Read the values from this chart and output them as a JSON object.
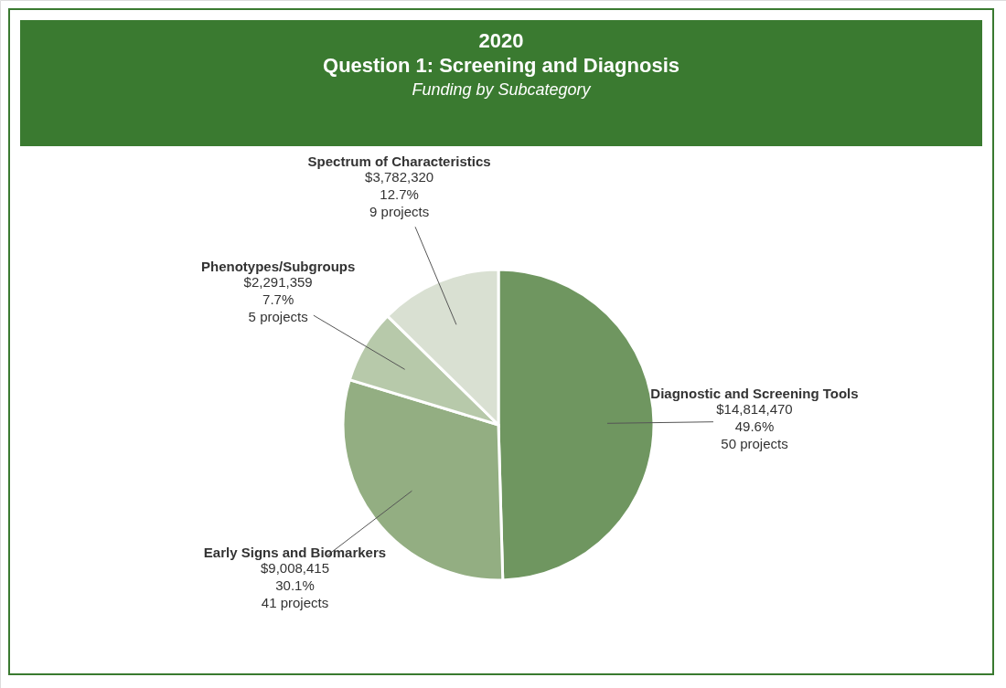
{
  "chart_data": {
    "type": "pie",
    "title": "2020\nQuestion 1: Screening and Diagnosis",
    "subtitle": "Funding by Subcategory",
    "categories": [
      "Diagnostic and Screening Tools",
      "Early Signs and Biomarkers",
      "Phenotypes/Subgroups",
      "Spectrum of Characteristics"
    ],
    "values": [
      14814470,
      9008415,
      2291359,
      3782320
    ],
    "colors": [
      "#6f9660",
      "#93ae82",
      "#b7c9aa",
      "#d9e0d2"
    ],
    "value_labels": [
      "$14,814,470\n49.6%\n50 projects",
      "$9,008,415\n30.1%\n41 projects",
      "$2,291,359\n7.7%\n5 projects",
      "$3,782,320\n12.7%\n9 projects"
    ]
  }
}
